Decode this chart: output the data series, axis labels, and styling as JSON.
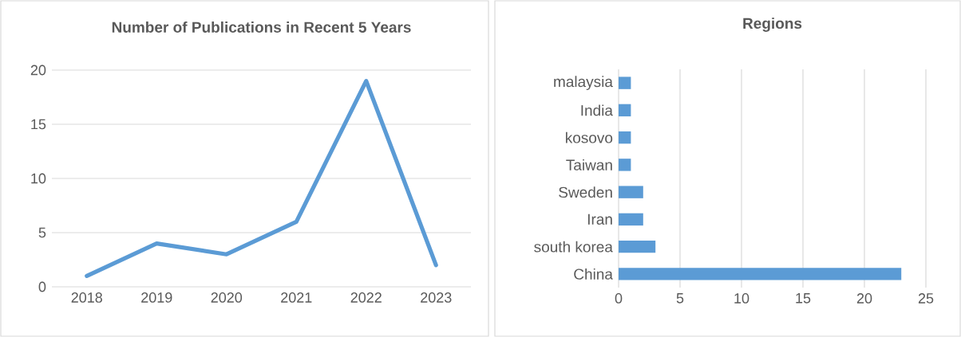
{
  "chart_data": [
    {
      "type": "line",
      "title": "Number of Publications in Recent 5 Years",
      "categories": [
        "2018",
        "2019",
        "2020",
        "2021",
        "2022",
        "2023"
      ],
      "series": [
        {
          "color": "#5b9bd5",
          "values": [
            1,
            4,
            3,
            6,
            19,
            2
          ]
        }
      ],
      "ylim": [
        0,
        20
      ],
      "yticks": [
        0,
        5,
        10,
        15,
        20
      ],
      "grid": "y",
      "marker": "none",
      "line_style": "solid"
    },
    {
      "type": "bar",
      "orientation": "horizontal",
      "title": "Regions",
      "categories": [
        "malaysia",
        "India",
        "kosovo",
        "Taiwan",
        "Sweden",
        "Iran",
        "south korea",
        "China"
      ],
      "series": [
        {
          "color": "#5b9bd5",
          "values": [
            1,
            1,
            1,
            1,
            2,
            2,
            3,
            23
          ]
        }
      ],
      "xlim": [
        0,
        25
      ],
      "xticks": [
        0,
        5,
        10,
        15,
        20,
        25
      ],
      "grid": "x"
    }
  ]
}
